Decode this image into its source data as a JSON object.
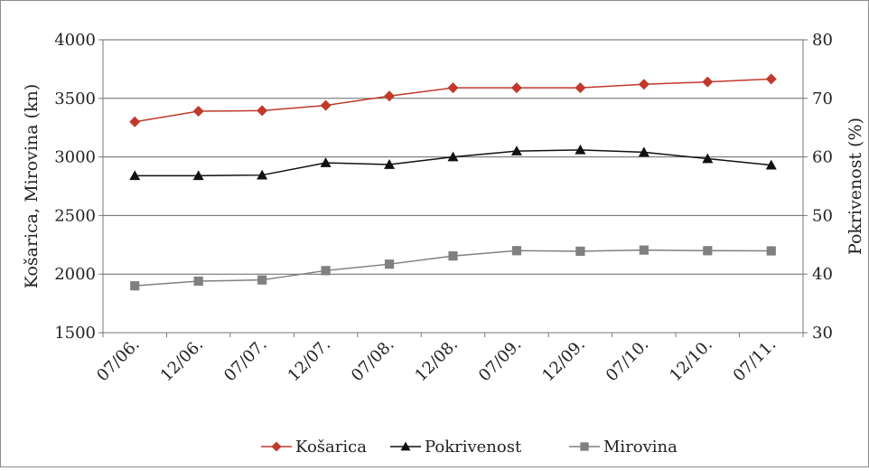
{
  "chart_data": {
    "type": "line",
    "title": "",
    "categories": [
      "07/06.",
      "12/06.",
      "07/07.",
      "12/07.",
      "07/08.",
      "12/08.",
      "07/09.",
      "12/09.",
      "07/10.",
      "12/10.",
      "07/11."
    ],
    "y_left": {
      "label": "Košarica, Mirovina (kn)",
      "range": [
        1500,
        4000
      ],
      "ticks": [
        "1500",
        "2000",
        "2500",
        "3000",
        "3500",
        "4000"
      ]
    },
    "y_right": {
      "label": "Pokrivenost (%)",
      "range": [
        30,
        80
      ],
      "ticks": [
        "30",
        "40",
        "50",
        "60",
        "70",
        "80"
      ]
    },
    "grid": true,
    "legend_position": "bottom",
    "series": [
      {
        "name": "Košarica",
        "axis": "left",
        "marker": "diamond",
        "color": "#c0392b",
        "values": [
          3300,
          3390,
          3395,
          3440,
          3520,
          3590,
          3590,
          3590,
          3620,
          3640,
          3665
        ]
      },
      {
        "name": "Pokrivenost",
        "axis": "right",
        "marker": "triangle",
        "color": "#111111",
        "values": [
          56.8,
          56.8,
          56.9,
          59.0,
          58.7,
          60.0,
          61.0,
          61.2,
          60.8,
          59.7,
          58.6
        ]
      },
      {
        "name": "Mirovina",
        "axis": "left",
        "marker": "square",
        "color": "#808080",
        "values": [
          1900,
          1940,
          1950,
          2030,
          2085,
          2155,
          2200,
          2195,
          2205,
          2200,
          2198
        ]
      }
    ]
  }
}
